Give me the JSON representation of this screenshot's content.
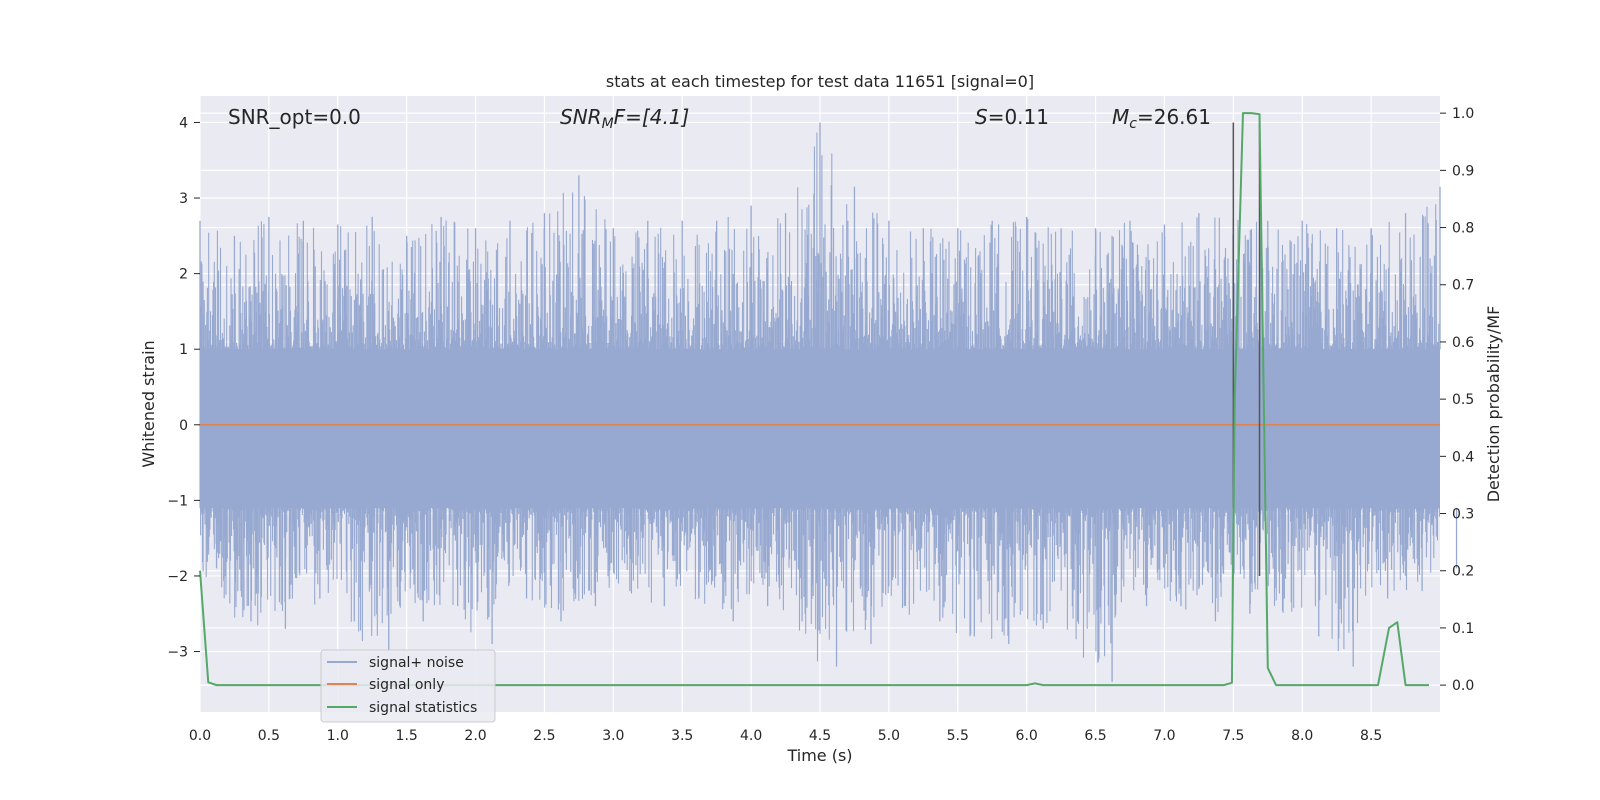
{
  "chart_data": {
    "type": "line",
    "title": "stats at each timestep for test data 11651 [signal=0]",
    "xlabel": "Time (s)",
    "ylabel_left": "Whitened strain",
    "ylabel_right": "Detection probability/MF",
    "xlim": [
      0.0,
      9.0
    ],
    "ylim_left": [
      -3.8,
      4.35
    ],
    "ylim_right": [
      -0.047,
      1.03
    ],
    "xticks": [
      "0.0",
      "0.5",
      "1.0",
      "1.5",
      "2.0",
      "2.5",
      "3.0",
      "3.5",
      "4.0",
      "4.5",
      "5.0",
      "5.5",
      "6.0",
      "6.5",
      "7.0",
      "7.5",
      "8.0",
      "8.5"
    ],
    "xtick_values": [
      0.0,
      0.5,
      1.0,
      1.5,
      2.0,
      2.5,
      3.0,
      3.5,
      4.0,
      4.5,
      5.0,
      5.5,
      6.0,
      6.5,
      7.0,
      7.5,
      8.0,
      8.5
    ],
    "yticks_left": [
      "−3",
      "−2",
      "−1",
      "0",
      "1",
      "2",
      "3",
      "4"
    ],
    "ytick_values_left": [
      -3,
      -2,
      -1,
      0,
      1,
      2,
      3,
      4
    ],
    "yticks_right": [
      "0.0",
      "0.1",
      "0.2",
      "0.3",
      "0.4",
      "0.5",
      "0.6",
      "0.7",
      "0.8",
      "0.9",
      "1.0"
    ],
    "ytick_values_right": [
      0.0,
      0.1,
      0.2,
      0.3,
      0.4,
      0.5,
      0.6,
      0.7,
      0.8,
      0.9,
      1.0
    ],
    "grid": true,
    "legend_position": "lower-left",
    "annotations": {
      "snr_opt": "SNR_opt=0.0",
      "snr_mf_main": "SNR",
      "snr_mf_sub": "M",
      "snr_mf_rest": "F=[4.1]",
      "s_var": "S",
      "s_rest": "=0.11",
      "mc_var": "M",
      "mc_sub": "c",
      "mc_rest": "=26.61"
    },
    "series": [
      {
        "name": "signal+ noise",
        "axis": "left",
        "color": "#97a9d0",
        "envelope": {
          "x": [
            0.0,
            0.25,
            0.5,
            0.75,
            1.0,
            1.25,
            1.5,
            1.75,
            2.0,
            2.25,
            2.5,
            2.75,
            3.0,
            3.25,
            3.5,
            3.75,
            4.0,
            4.25,
            4.5,
            4.75,
            5.0,
            5.25,
            5.5,
            5.75,
            6.0,
            6.25,
            6.5,
            6.75,
            7.0,
            7.25,
            7.5,
            7.75,
            8.0,
            8.25,
            8.5,
            8.75,
            9.0
          ],
          "max": [
            2.7,
            2.5,
            2.75,
            2.7,
            2.65,
            2.75,
            2.5,
            2.75,
            2.6,
            2.7,
            2.8,
            3.3,
            2.6,
            2.7,
            2.7,
            2.7,
            2.9,
            2.8,
            4.0,
            3.15,
            2.7,
            2.6,
            2.6,
            2.7,
            2.75,
            2.6,
            2.6,
            2.7,
            2.65,
            2.8,
            2.75,
            2.7,
            2.7,
            2.6,
            2.6,
            2.8,
            3.15
          ],
          "min": [
            -1.9,
            -2.6,
            -2.7,
            -2.3,
            -2.6,
            -3.0,
            -2.6,
            -2.4,
            -2.9,
            -2.3,
            -2.6,
            -2.4,
            -2.2,
            -2.4,
            -2.3,
            -2.6,
            -2.4,
            -2.6,
            -3.2,
            -2.9,
            -2.4,
            -2.6,
            -2.8,
            -2.9,
            -2.7,
            -2.6,
            -3.4,
            -2.4,
            -2.4,
            -2.6,
            -2.5,
            -2.3,
            -2.8,
            -3.2,
            -2.3,
            -2.2,
            -1.9
          ],
          "core": [
            -1.1,
            1.0
          ]
        }
      },
      {
        "name": "signal only",
        "axis": "left",
        "color": "#dd8452",
        "x": [
          0.0,
          9.0
        ],
        "y": [
          0.0,
          0.0
        ]
      },
      {
        "name": "signal statistics",
        "axis": "right",
        "color": "#55a868",
        "x": [
          0.0,
          0.06,
          0.12,
          6.0,
          6.06,
          6.12,
          7.43,
          7.49,
          7.51,
          7.57,
          7.63,
          7.69,
          7.75,
          7.81,
          8.55,
          8.63,
          8.69,
          8.75,
          8.81,
          8.92
        ],
        "y": [
          0.2,
          0.005,
          0.0,
          0.0,
          0.003,
          0.0,
          0.0,
          0.004,
          0.5,
          1.0,
          1.0,
          0.998,
          0.03,
          0.0,
          0.0,
          0.1,
          0.11,
          0.0,
          0.0,
          0.0
        ]
      }
    ],
    "vlines": {
      "color": "#555555",
      "x": [
        7.5,
        7.69
      ],
      "y_top": 4.0,
      "y_bottom": [
        -1.1,
        -2.0
      ]
    }
  }
}
